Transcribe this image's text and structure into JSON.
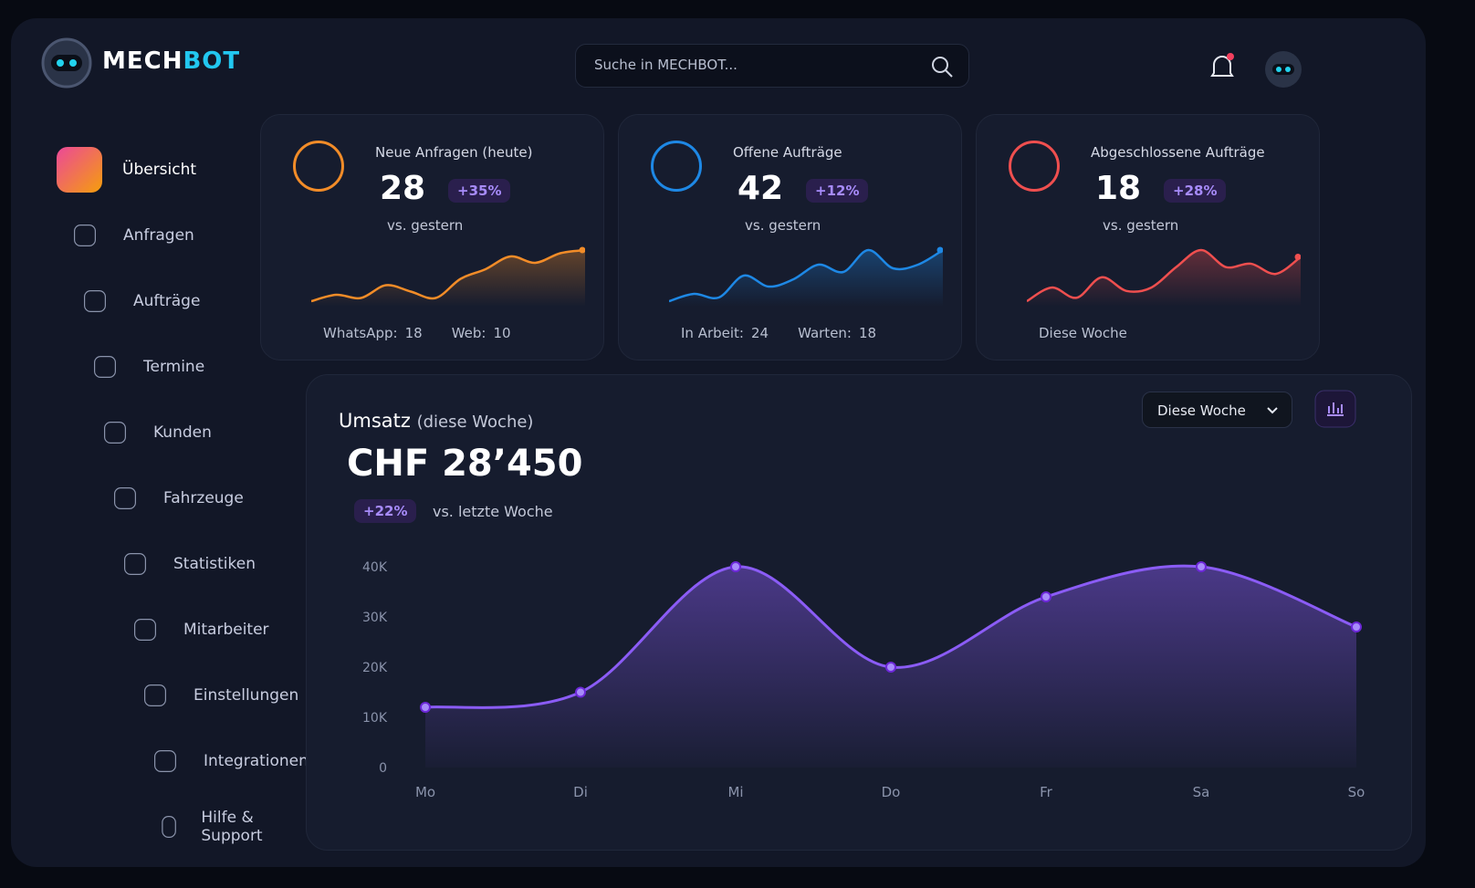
{
  "brand": {
    "part1": "MECH",
    "part2": "BOT"
  },
  "search": {
    "placeholder": "Suche in MECHBOT..."
  },
  "nav": [
    "Übersicht",
    "Anfragen",
    "Aufträge",
    "Termine",
    "Kunden",
    "Fahrzeuge",
    "Statistiken",
    "Mitarbeiter",
    "Einstellungen",
    "Integrationen",
    "Hilfe & Support"
  ],
  "cards": [
    {
      "title": "Neue Anfragen (heute)",
      "value": 28,
      "change": "+35%",
      "compare": "vs. gestern",
      "color": "#f28c28",
      "sparkline": [
        20,
        24,
        22,
        30,
        26,
        22,
        34,
        40,
        48,
        44,
        50,
        52
      ],
      "footer": [
        {
          "label": "WhatsApp:",
          "value": 18
        },
        {
          "label": "Web:",
          "value": 10
        }
      ]
    },
    {
      "title": "Offene Aufträge",
      "value": 42,
      "change": "+12%",
      "compare": "vs. gestern",
      "color": "#1e88e5",
      "sparkline": [
        18,
        22,
        20,
        32,
        26,
        30,
        38,
        34,
        46,
        36,
        38,
        46
      ],
      "footer": [
        {
          "label": "In Arbeit:",
          "value": 24
        },
        {
          "label": "Warten:",
          "value": 18
        }
      ]
    },
    {
      "title": "Abgeschlossene Aufträge",
      "value": 18,
      "change": "+28%",
      "compare": "vs. gestern",
      "color": "#ef4f4f",
      "sparkline": [
        22,
        30,
        24,
        36,
        28,
        30,
        42,
        52,
        42,
        44,
        38,
        48
      ],
      "footer_text": "Diese Woche"
    }
  ],
  "revenue": {
    "title": "Umsatz",
    "subtitle": "(diese Woche)",
    "total": "CHF 28’450",
    "change": "+22%",
    "compare": "vs. letzte Woche",
    "period": "Diese Woche",
    "chart_data": {
      "type": "line",
      "categories": [
        "Mo",
        "Di",
        "Mi",
        "Do",
        "Fr",
        "Sa",
        "So"
      ],
      "values": [
        12000,
        15000,
        40000,
        20000,
        34000,
        40000,
        28000
      ],
      "color": "#8b5cf6",
      "ylim": [
        0,
        40000
      ],
      "yticks": [
        0,
        {
          "value": 10000,
          "label": "10K"
        },
        {
          "value": 20000,
          "label": "20K"
        },
        {
          "value": 30000,
          "label": "30K"
        },
        {
          "value": 40000,
          "label": "40K"
        }
      ]
    }
  }
}
